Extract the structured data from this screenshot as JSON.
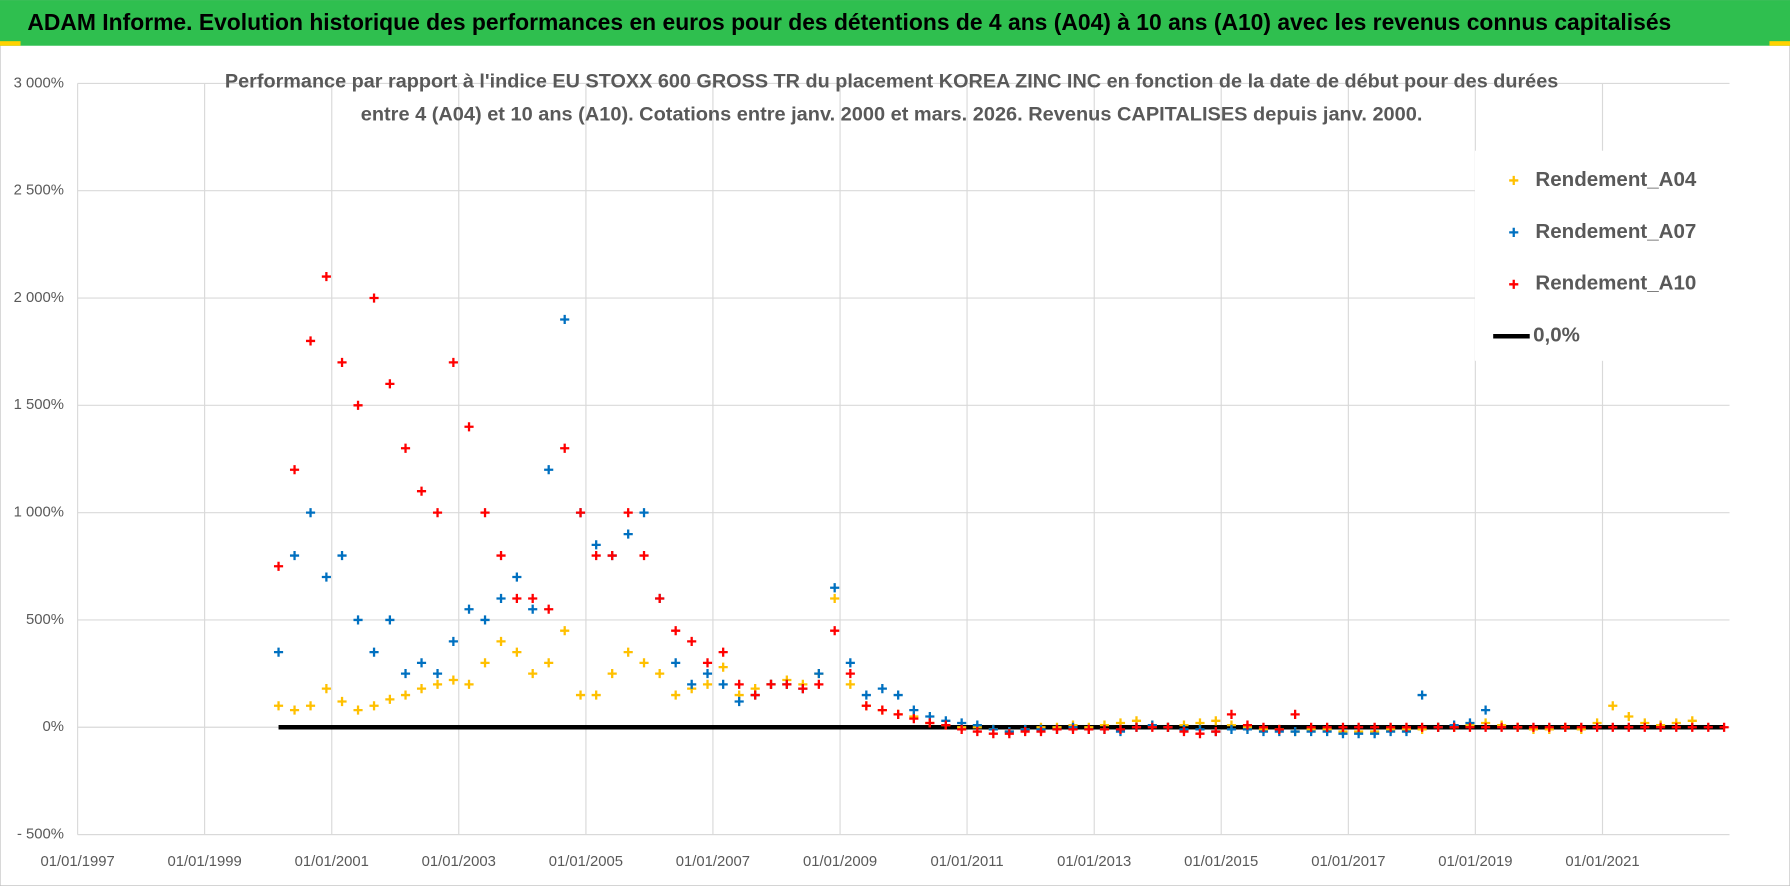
{
  "chart_data": {
    "type": "scatter",
    "header": "ADAM Informe. Evolution historique des performances en euros pour des détentions de 4 ans (A04) à 10 ans (A10) avec les revenus connus capitalisés",
    "title": [
      "Performance par rapport à l'indice EU STOXX 600 GROSS TR  du placement KOREA ZINC INC en fonction de la date de début pour des durées",
      "entre 4 (A04) et 10 ans (A10). Cotations entre janv. 2000 et mars. 2026. Revenus CAPITALISES depuis janv. 2000."
    ],
    "x": [
      "2000-03-01",
      "2000-06-01",
      "2000-09-01",
      "2000-12-01",
      "2001-03-01",
      "2001-06-01",
      "2001-09-01",
      "2001-12-01",
      "2002-03-01",
      "2002-06-01",
      "2002-09-01",
      "2002-12-01",
      "2003-03-01",
      "2003-06-01",
      "2003-09-01",
      "2003-12-01",
      "2004-03-01",
      "2004-06-01",
      "2004-09-01",
      "2004-12-01",
      "2005-03-01",
      "2005-06-01",
      "2005-09-01",
      "2005-12-01",
      "2006-03-01",
      "2006-06-01",
      "2006-09-01",
      "2006-12-01",
      "2007-03-01",
      "2007-06-01",
      "2007-09-01",
      "2007-12-01",
      "2008-03-01",
      "2008-06-01",
      "2008-09-01",
      "2008-12-01",
      "2009-03-01",
      "2009-06-01",
      "2009-09-01",
      "2009-12-01",
      "2010-03-01",
      "2010-06-01",
      "2010-09-01",
      "2010-12-01",
      "2011-03-01",
      "2011-06-01",
      "2011-09-01",
      "2011-12-01",
      "2012-03-01",
      "2012-06-01",
      "2012-09-01",
      "2012-12-01",
      "2013-03-01",
      "2013-06-01",
      "2013-09-01",
      "2013-12-01",
      "2014-03-01",
      "2014-06-01",
      "2014-09-01",
      "2014-12-01",
      "2015-03-01",
      "2015-06-01",
      "2015-09-01",
      "2015-12-01",
      "2016-03-01",
      "2016-06-01",
      "2016-09-01",
      "2016-12-01",
      "2017-03-01",
      "2017-06-01",
      "2017-09-01",
      "2017-12-01",
      "2018-03-01",
      "2018-06-01",
      "2018-09-01",
      "2018-12-01",
      "2019-03-01",
      "2019-06-01",
      "2019-09-01",
      "2019-12-01",
      "2020-03-01",
      "2020-06-01",
      "2020-09-01",
      "2020-12-01",
      "2021-03-01",
      "2021-06-01",
      "2021-09-01",
      "2021-12-01",
      "2022-03-01",
      "2022-06-01",
      "2022-09-01",
      "2022-12-01"
    ],
    "series": [
      {
        "name": "Rendement_A04",
        "color": "#ffc000",
        "mode": "marker",
        "values": [
          100,
          80,
          100,
          180,
          120,
          80,
          100,
          130,
          150,
          180,
          200,
          220,
          200,
          300,
          400,
          350,
          250,
          300,
          450,
          150,
          150,
          250,
          350,
          300,
          250,
          150,
          180,
          200,
          280,
          150,
          180,
          200,
          220,
          200,
          250,
          600,
          200,
          100,
          80,
          60,
          50,
          20,
          10,
          0,
          0,
          -10,
          -20,
          -10,
          0,
          0,
          10,
          0,
          10,
          20,
          30,
          10,
          0,
          10,
          20,
          30,
          10,
          0,
          -10,
          -10,
          -20,
          -10,
          -10,
          -20,
          -20,
          -20,
          -10,
          -10,
          -10,
          0,
          0,
          10,
          20,
          10,
          0,
          -10,
          -10,
          0,
          -10,
          20,
          100,
          50,
          20,
          10,
          20,
          30,
          null,
          null
        ]
      },
      {
        "name": "Rendement_A07",
        "color": "#0070c0",
        "mode": "marker",
        "values": [
          350,
          800,
          1000,
          700,
          800,
          500,
          350,
          500,
          250,
          300,
          250,
          400,
          550,
          500,
          600,
          700,
          550,
          1200,
          1900,
          1000,
          850,
          800,
          900,
          1000,
          600,
          300,
          200,
          250,
          200,
          120,
          150,
          200,
          200,
          180,
          250,
          650,
          300,
          150,
          180,
          150,
          80,
          50,
          30,
          20,
          10,
          -10,
          -20,
          -10,
          -10,
          -10,
          0,
          -10,
          -10,
          -20,
          0,
          10,
          0,
          -10,
          -10,
          -20,
          -10,
          -10,
          -20,
          -20,
          -20,
          -20,
          -20,
          -30,
          -30,
          -30,
          -20,
          -20,
          150,
          0,
          10,
          20,
          80,
          null,
          null,
          null,
          null,
          null,
          null,
          null,
          null,
          null,
          null,
          null,
          null,
          null,
          null,
          null
        ]
      },
      {
        "name": "Rendement_A10",
        "color": "#ff0000",
        "mode": "marker",
        "values": [
          750,
          1200,
          1800,
          2100,
          1700,
          1500,
          2000,
          1600,
          1300,
          1100,
          1000,
          1700,
          1400,
          1000,
          800,
          600,
          600,
          550,
          1300,
          1000,
          800,
          800,
          1000,
          800,
          600,
          450,
          400,
          300,
          350,
          200,
          150,
          200,
          200,
          180,
          200,
          450,
          250,
          100,
          80,
          60,
          40,
          20,
          10,
          -10,
          -20,
          -30,
          -30,
          -20,
          -20,
          -10,
          -10,
          -10,
          -10,
          -10,
          0,
          0,
          0,
          -20,
          -30,
          -20,
          60,
          10,
          0,
          -10,
          60,
          0,
          0,
          0,
          0,
          0,
          0,
          0,
          0,
          0,
          0,
          0,
          0,
          0,
          0,
          0,
          0,
          0,
          0,
          0,
          0,
          0,
          0,
          0,
          0,
          0,
          0,
          0
        ]
      },
      {
        "name": "0,0%",
        "color": "#000000",
        "mode": "line",
        "values": [
          0,
          0,
          0,
          0,
          0,
          0,
          0,
          0,
          0,
          0,
          0,
          0,
          0,
          0,
          0,
          0,
          0,
          0,
          0,
          0,
          0,
          0,
          0,
          0,
          0,
          0,
          0,
          0,
          0,
          0,
          0,
          0,
          0,
          0,
          0,
          0,
          0,
          0,
          0,
          0,
          0,
          0,
          0,
          0,
          0,
          0,
          0,
          0,
          0,
          0,
          0,
          0,
          0,
          0,
          0,
          0,
          0,
          0,
          0,
          0,
          0,
          0,
          0,
          0,
          0,
          0,
          0,
          0,
          0,
          0,
          0,
          0,
          0,
          0,
          0,
          0,
          0,
          0,
          0,
          0,
          0,
          0,
          0,
          0,
          0,
          0,
          0,
          0,
          0,
          0,
          0,
          0
        ]
      }
    ],
    "xlim": [
      "1997-01-01",
      "2023-01-01"
    ],
    "xticks": [
      {
        "value": "1997-01-01",
        "label": "01/01/1997"
      },
      {
        "value": "1999-01-01",
        "label": "01/01/1999"
      },
      {
        "value": "2001-01-01",
        "label": "01/01/2001"
      },
      {
        "value": "2003-01-01",
        "label": "01/01/2003"
      },
      {
        "value": "2005-01-01",
        "label": "01/01/2005"
      },
      {
        "value": "2007-01-01",
        "label": "01/01/2007"
      },
      {
        "value": "2009-01-01",
        "label": "01/01/2009"
      },
      {
        "value": "2011-01-01",
        "label": "01/01/2011"
      },
      {
        "value": "2013-01-01",
        "label": "01/01/2013"
      },
      {
        "value": "2015-01-01",
        "label": "01/01/2015"
      },
      {
        "value": "2017-01-01",
        "label": "01/01/2017"
      },
      {
        "value": "2019-01-01",
        "label": "01/01/2019"
      },
      {
        "value": "2021-01-01",
        "label": "01/01/2021"
      }
    ],
    "ylim": [
      -500,
      3000
    ],
    "yticks": [
      {
        "value": -500,
        "label": "- 500%"
      },
      {
        "value": 0,
        "label": "0%"
      },
      {
        "value": 500,
        "label": "500%"
      },
      {
        "value": 1000,
        "label": "1 000%"
      },
      {
        "value": 1500,
        "label": "1 500%"
      },
      {
        "value": 2000,
        "label": "2 000%"
      },
      {
        "value": 2500,
        "label": "2 500%"
      },
      {
        "value": 3000,
        "label": "3 000%"
      }
    ],
    "grid": true,
    "legend": "upper right"
  }
}
